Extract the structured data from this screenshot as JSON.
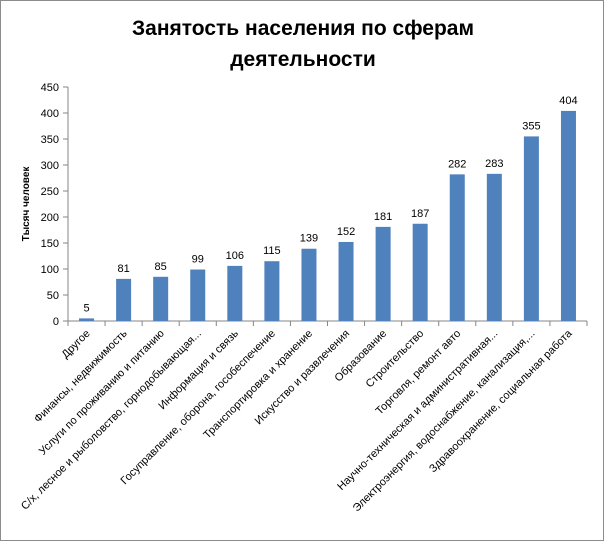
{
  "chart_data": {
    "type": "bar",
    "title": "Занятость населения по сферам деятельности",
    "xlabel": "",
    "ylabel": "Тысяч человек",
    "ylim": [
      0,
      450
    ],
    "yticks": [
      0,
      50,
      100,
      150,
      200,
      250,
      300,
      350,
      400,
      450
    ],
    "grid": false,
    "legend": "none",
    "bar_color": "#4f81bd",
    "categories": [
      "Другое",
      "Финансы, недвижимость",
      "Услуги по проживанию и питанию",
      "С/х, лесное и рыболовство, горнодобывающая...",
      "Информация и связь",
      "Госуправление, оборона, гособеспечение",
      "Транспортировка и хранение",
      "Искусство и развлечения",
      "Образование",
      "Строительство",
      "Торговля, ремонт авто",
      "Научно-техническая и административная...",
      "Электроэнергия, водоснабжение, канализация,...",
      "Здравоохранение, социальная работа"
    ],
    "values": [
      5,
      81,
      85,
      99,
      106,
      115,
      139,
      152,
      181,
      187,
      282,
      283,
      355,
      404
    ]
  }
}
